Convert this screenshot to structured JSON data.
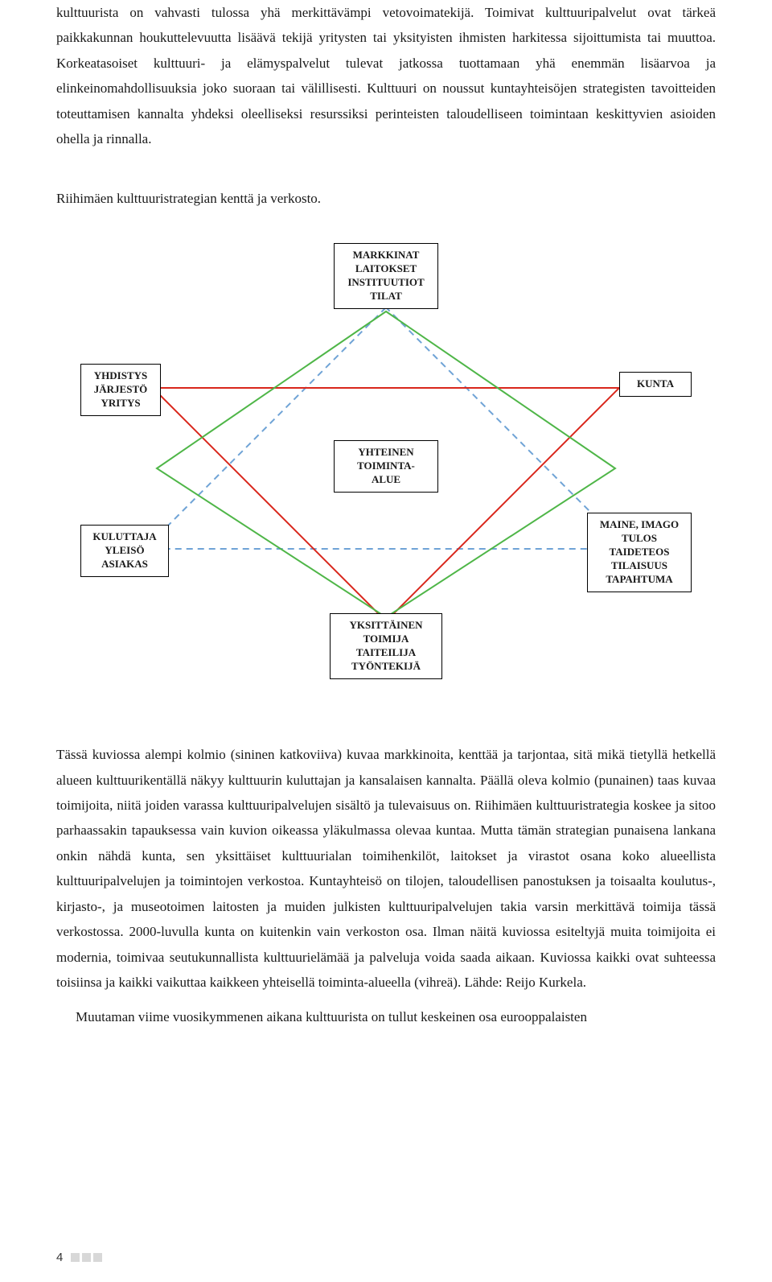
{
  "para1": "kulttuurista on vahvasti tulossa yhä merkittävämpi vetovoimatekijä. Toimivat kulttuuripalvelut ovat tärkeä paikkakunnan houkuttelevuutta lisäävä tekijä yritysten tai yksityisten ihmisten harkitessa sijoittumista tai muuttoa. Korkeatasoiset kulttuuri- ja elämyspalvelut tulevat jatkossa tuottamaan yhä enemmän lisäarvoa ja elinkeinomahdollisuuksia joko suoraan tai välillisesti. Kulttuuri on noussut kuntayhteisöjen strategisten tavoitteiden toteuttamisen kannalta yhdeksi oleelliseksi resurssiksi perinteisten taloudelliseen toimintaan keskittyvien asioiden ohella ja rinnalla.",
  "para2": "Riihimäen kulttuuristrategian kenttä ja verkosto.",
  "diagram": {
    "type": "network",
    "nodes": {
      "top": "MARKKINAT\nLAITOKSET\nINSTITUUTIOT\nTILAT",
      "left_upper": "YHDISTYS\nJÄRJESTÖ\nYRITYS",
      "right_upper": "KUNTA",
      "center": "YHTEINEN\nTOIMINTA-\nALUE",
      "left_lower": "KULUTTAJA\nYLEISÖ\nASIAKAS",
      "right_lower": "MAINE, IMAGO\nTULOS\nTAIDETEOS\nTILAISUUS\nTAPAHTUMA",
      "bottom": "YKSITTÄINEN\nTOIMIJA\nTAITEILIJA\nTYÖNTEKIJÄ"
    },
    "colors": {
      "red_triangle": "#d9271c",
      "blue_triangle": "#6fa3d6",
      "green_diamond": "#4fb648",
      "node_border": "#000000",
      "background": "#ffffff"
    },
    "blue_dash": "8,6",
    "stroke_width": 2
  },
  "para3": "Tässä kuviossa alempi kolmio (sininen katkoviiva) kuvaa markkinoita, kenttää ja tarjontaa, sitä mikä tietyllä hetkellä alueen kulttuurikentällä näkyy kulttuurin kuluttajan ja kansalaisen kannalta. Päällä oleva kolmio (punainen) taas kuvaa toimijoita, niitä joiden varassa kulttuuripalvelujen sisältö ja tulevaisuus on. Riihimäen kulttuuristrategia koskee ja sitoo parhaassakin tapauksessa vain kuvion oikeassa yläkulmassa olevaa kuntaa. Mutta tämän strategian punaisena lankana onkin nähdä kunta, sen yksittäiset kulttuurialan toimihenkilöt, laitokset ja virastot osana koko alueellista kulttuuripalvelujen ja toimintojen verkostoa. Kuntayhteisö on tilojen, taloudellisen panostuksen ja toisaalta koulutus-, kirjasto-, ja museotoimen laitosten ja muiden julkisten kulttuuripalvelujen takia varsin merkittävä toimija tässä verkostossa. 2000-luvulla kunta on kuitenkin vain verkoston osa. Ilman näitä kuviossa esiteltyjä muita toimijoita ei modernia, toimivaa seutukunnallista kulttuurielämää ja palveluja voida saada aikaan. Kuviossa kaikki ovat suhteessa toisiinsa ja kaikki vaikuttaa kaikkeen yhteisellä toiminta-alueella (vihreä). Lähde: Reijo Kurkela.",
  "para4": "Muutaman viime vuosikymmenen aikana kulttuurista on tullut keskeinen osa eurooppalaisten",
  "page_number": "4"
}
